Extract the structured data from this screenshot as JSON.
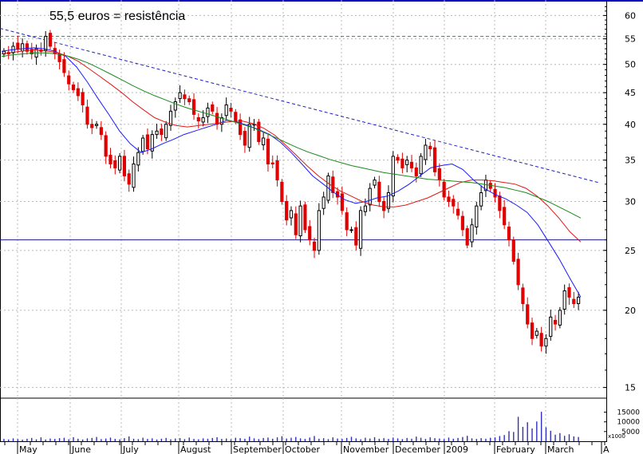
{
  "chart_data": {
    "type": "candlestick",
    "annotation": "55,5 euros = resistência",
    "y_axis": {
      "scale": "log",
      "ticks": [
        15,
        20,
        25,
        30,
        35,
        40,
        45,
        50,
        55,
        60
      ],
      "range": [
        14.5,
        63
      ]
    },
    "volume_axis": {
      "ticks": [
        5000,
        10000,
        15000
      ],
      "unit_label": "x1000",
      "range": [
        0,
        21000
      ]
    },
    "x_axis": {
      "months": [
        "May",
        "June",
        "July",
        "August",
        "September",
        "October",
        "November",
        "December",
        "2009",
        "February",
        "March",
        "A"
      ]
    },
    "reference_lines": [
      {
        "name": "resistance",
        "value": 55.5,
        "style": "dashed",
        "color": "#3a8a3a"
      },
      {
        "name": "support",
        "value": 26,
        "style": "solid",
        "color": "#1a1a8c"
      }
    ],
    "trendline": {
      "from_value": 57.2,
      "to_value": 32.2,
      "style": "dashed",
      "color": "#2020c0"
    },
    "moving_averages": [
      {
        "color": "#1a1aff",
        "values": [
          52.5,
          52.8,
          53.0,
          53.2,
          53.0,
          52.5,
          51.5,
          49.5,
          46.8,
          44.0,
          41.5,
          39.0,
          37.2,
          36.0,
          36.5,
          37.2,
          37.8,
          38.5,
          39.0,
          39.5,
          40.0,
          40.6,
          40.3,
          39.8,
          39.2,
          38.5,
          37.4,
          36.0,
          34.5,
          33.0,
          32.0,
          31.0,
          30.2,
          29.8,
          30.0,
          30.4,
          30.6,
          31.2,
          32.0,
          33.0,
          34.0,
          34.3,
          34.5,
          33.8,
          32.5,
          31.5,
          30.8,
          30.3,
          29.6,
          28.8,
          27.5,
          25.8,
          24.2,
          22.5,
          21.0
        ]
      },
      {
        "color": "#e01818",
        "values": [
          52.0,
          52.3,
          52.6,
          52.8,
          52.6,
          52.3,
          51.6,
          50.6,
          49.2,
          47.8,
          46.4,
          45.0,
          43.5,
          42.2,
          41.0,
          40.3,
          39.8,
          39.6,
          39.8,
          40.0,
          40.2,
          40.4,
          40.5,
          40.1,
          39.4,
          38.4,
          37.0,
          35.6,
          34.2,
          33.0,
          32.0,
          31.2,
          30.6,
          30.0,
          29.6,
          29.4,
          29.4,
          29.6,
          30.0,
          30.4,
          31.0,
          31.6,
          32.2,
          32.5,
          32.5,
          32.4,
          32.2,
          32.0,
          31.5,
          30.6,
          29.5,
          28.2,
          26.8,
          25.8
        ]
      },
      {
        "color": "#1a8a1a",
        "values": [
          51.5,
          51.8,
          52.0,
          52.2,
          52.2,
          52.0,
          51.6,
          51.0,
          50.2,
          49.2,
          48.2,
          47.2,
          46.2,
          45.3,
          44.5,
          43.8,
          43.1,
          42.5,
          42.0,
          41.5,
          41.0,
          40.5,
          40.0,
          39.5,
          38.8,
          38.1,
          37.4,
          36.7,
          36.1,
          35.6,
          35.1,
          34.7,
          34.3,
          34.0,
          33.7,
          33.4,
          33.2,
          33.0,
          32.8,
          32.6,
          32.5,
          32.4,
          32.3,
          32.2,
          32.0,
          31.8,
          31.6,
          31.3,
          31.0,
          30.5,
          30.0,
          29.4,
          28.8,
          28.2
        ]
      }
    ],
    "price": [
      52.5,
      52.0,
      53.5,
      53.0,
      54.0,
      52.5,
      52.0,
      53.0,
      52.5,
      55.5,
      53.5,
      52.0,
      50.5,
      48.5,
      46.5,
      45.5,
      44.5,
      43.0,
      40.0,
      39.5,
      40.0,
      38.5,
      35.5,
      34.5,
      34.0,
      35.5,
      33.0,
      32.0,
      34.5,
      36.0,
      38.0,
      36.5,
      38.5,
      39.0,
      38.5,
      40.0,
      42.0,
      43.5,
      45.0,
      44.0,
      43.5,
      41.5,
      40.5,
      41.0,
      42.5,
      42.0,
      40.0,
      41.0,
      43.0,
      42.0,
      40.5,
      38.5,
      37.0,
      40.0,
      40.0,
      37.5,
      38.0,
      34.5,
      34.5,
      32.5,
      30.0,
      28.0,
      29.0,
      26.5,
      29.5,
      27.0,
      26.0,
      25.0,
      29.0,
      30.5,
      33.0,
      31.0,
      30.5,
      29.0,
      27.0,
      27.0,
      25.5,
      29.0,
      29.5,
      31.5,
      32.5,
      30.0,
      29.0,
      31.0,
      35.5,
      35.0,
      34.0,
      35.0,
      34.0,
      33.0,
      35.5,
      37.0,
      36.5,
      33.5,
      32.5,
      30.5,
      30.0,
      29.5,
      28.5,
      27.0,
      25.5,
      27.5,
      29.5,
      31.0,
      32.5,
      31.5,
      30.5,
      29.0,
      27.5,
      26.0,
      24.0,
      22.0,
      20.5,
      19.0,
      18.0,
      18.5,
      17.5,
      18.0,
      19.5,
      19.0,
      20.0,
      21.5,
      21.0,
      20.5,
      21.0
    ],
    "volume": [
      1200,
      900,
      1500,
      1100,
      800,
      1300,
      1700,
      1000,
      2000,
      900,
      1400,
      1200,
      1600,
      1800,
      1000,
      2100,
      1300,
      900,
      1500,
      1700,
      2200,
      1100,
      1400,
      1900,
      1200,
      1000,
      1600,
      2500,
      1300,
      1100,
      1800,
      1200,
      1500,
      900,
      1300,
      1700,
      1000,
      1400,
      1600,
      1100,
      1900,
      1200,
      1000,
      1500,
      1300,
      1700,
      2100,
      1200,
      1400,
      1000,
      1800,
      1600,
      1300,
      2400,
      1500,
      1100,
      1700,
      1900,
      1300,
      2000,
      2600,
      1400,
      1800,
      2200,
      1500,
      1200,
      1900,
      2700,
      1300,
      1600,
      1100,
      2000,
      1400,
      1200,
      1700,
      2300,
      1500,
      1000,
      1800,
      1400,
      2100,
      1300,
      1600,
      1200,
      1900,
      1500,
      1100,
      1700,
      1300,
      2400,
      1800,
      1200,
      2000,
      1600,
      1400,
      1100,
      1900,
      1300,
      1700,
      2200,
      2800,
      1500,
      1200,
      1600,
      1300,
      1800,
      2000,
      2700,
      3200,
      5200,
      4800,
      12600,
      7400,
      9800,
      6600,
      10200,
      15200,
      7200,
      5400,
      3400,
      4200,
      2800,
      3600,
      2500,
      2200
    ]
  }
}
